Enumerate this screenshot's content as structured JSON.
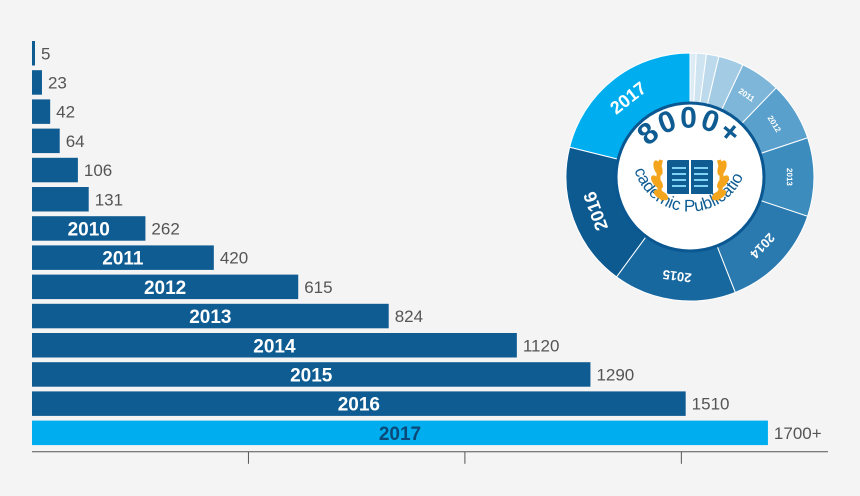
{
  "chart_data": {
    "type": "bar",
    "orientation": "horizontal",
    "categories": [
      "",
      "",
      "",
      "",
      "",
      "",
      "2010",
      "2011",
      "2012",
      "2013",
      "2014",
      "2015",
      "2016",
      "2017"
    ],
    "values": [
      5,
      23,
      42,
      64,
      106,
      131,
      262,
      420,
      615,
      824,
      1120,
      1290,
      1510,
      1700
    ],
    "value_labels": [
      "5",
      "23",
      "42",
      "64",
      "106",
      "131",
      "262",
      "420",
      "615",
      "824",
      "1120",
      "1290",
      "1510",
      "1700+"
    ],
    "xlim": [
      0,
      1800
    ],
    "grid": false,
    "colors": {
      "bar": "#0f5c93",
      "highlight": "#00aeef",
      "highlight_text": "#0b4a78",
      "axis": "#555555"
    }
  },
  "badge": {
    "headline": "8000+",
    "subtitle": "Academic Publications",
    "segments": [
      {
        "label": "2017",
        "value": 1700,
        "color": "#00aeef"
      },
      {
        "label": "2016",
        "value": 1510,
        "color": "#0d5a91"
      },
      {
        "label": "2015",
        "value": 1290,
        "color": "#1868a0"
      },
      {
        "label": "2014",
        "value": 1120,
        "color": "#2a7ab0"
      },
      {
        "label": "2013",
        "value": 824,
        "color": "#3c8cbe"
      },
      {
        "label": "2012",
        "value": 615,
        "color": "#5aa0cc"
      },
      {
        "label": "2011",
        "value": 420,
        "color": "#7eb6d9"
      },
      {
        "label": "",
        "value": 262,
        "color": "#a3cbe4"
      },
      {
        "label": "",
        "value": 131,
        "color": "#bcdaec"
      },
      {
        "label": "",
        "value": 106,
        "color": "#cfe4f1"
      },
      {
        "label": "",
        "value": 64,
        "color": "#ddebf5"
      }
    ],
    "colors": {
      "ring_edge": "#0a5791",
      "inner": "#ffffff",
      "text": "#0f5c93",
      "laurel": "#f4a51c"
    }
  }
}
